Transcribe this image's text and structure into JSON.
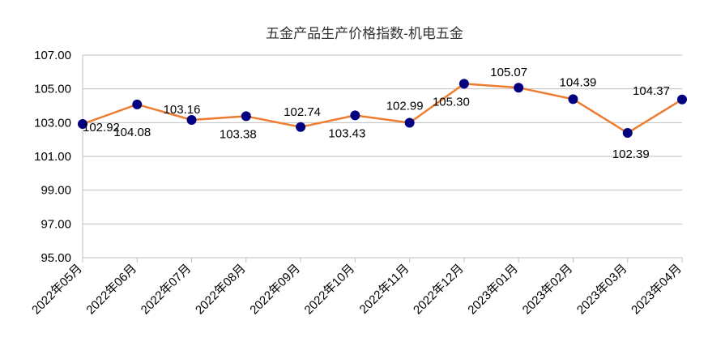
{
  "chart_data": {
    "type": "line",
    "title": "五金产品生产价格指数-机电五金",
    "xlabel": "",
    "ylabel": "",
    "categories": [
      "2022年05月",
      "2022年06月",
      "2022年07月",
      "2022年08月",
      "2022年09月",
      "2022年10月",
      "2022年11月",
      "2022年12月",
      "2023年01月",
      "2023年02月",
      "2023年03月",
      "2023年04月"
    ],
    "series": [
      {
        "values": [
          102.92,
          104.08,
          103.16,
          103.38,
          102.74,
          103.43,
          102.99,
          105.3,
          105.07,
          104.39,
          102.39,
          104.37
        ],
        "labels": [
          "102.92",
          "104.08",
          "103.16",
          "103.38",
          "102.74",
          "103.43",
          "102.99",
          "105.30",
          "105.07",
          "104.39",
          "102.39",
          "104.37"
        ],
        "line_color": "#ED7D31",
        "marker_color": "#000080"
      }
    ],
    "ylim": [
      95,
      107
    ],
    "yticks": [
      95,
      97,
      99,
      101,
      103,
      105,
      107
    ],
    "ytick_labels": [
      "95.00",
      "97.00",
      "99.00",
      "101.00",
      "103.00",
      "105.00",
      "107.00"
    ],
    "grid": true,
    "legend": "none"
  }
}
